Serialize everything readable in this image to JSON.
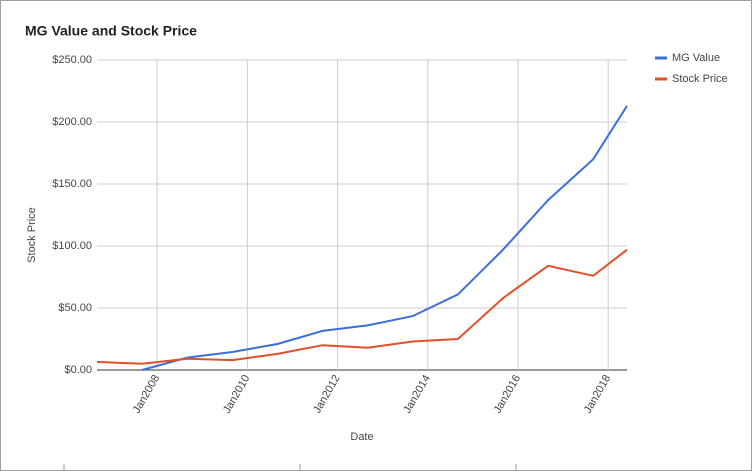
{
  "chart_data": {
    "type": "line",
    "title": "MG Value and Stock Price",
    "x_label": "Date",
    "y_label": "Stock Price",
    "x": [
      "2006-09",
      "2007-09",
      "2008-09",
      "2009-09",
      "2010-09",
      "2011-09",
      "2012-09",
      "2013-09",
      "2014-09",
      "2015-09",
      "2016-09",
      "2017-09",
      "2018-06"
    ],
    "xlim": [
      "2006-09",
      "2018-06"
    ],
    "xticks": [
      {
        "value": "2008-01",
        "label": "Jan2008"
      },
      {
        "value": "2010-01",
        "label": "Jan2010"
      },
      {
        "value": "2012-01",
        "label": "Jan2012"
      },
      {
        "value": "2014-01",
        "label": "Jan2014"
      },
      {
        "value": "2016-01",
        "label": "Jan2016"
      },
      {
        "value": "2018-01",
        "label": "Jan2018"
      }
    ],
    "ylim": [
      0,
      250
    ],
    "yticks": [
      {
        "value": 0,
        "label": "$0.00"
      },
      {
        "value": 50,
        "label": "$50.00"
      },
      {
        "value": 100,
        "label": "$100.00"
      },
      {
        "value": 150,
        "label": "$150.00"
      },
      {
        "value": 200,
        "label": "$200.00"
      },
      {
        "value": 250,
        "label": "$250.00"
      }
    ],
    "grid": true,
    "legend": "right",
    "series": [
      {
        "name": "MG Value",
        "color": "#3c6fd8",
        "values": [
          null,
          0,
          10,
          14.5,
          21,
          31.5,
          36,
          43.5,
          61,
          97,
          137,
          170,
          213
        ]
      },
      {
        "name": "Stock Price",
        "color": "#e0502b",
        "values": [
          6.5,
          5,
          9,
          8,
          13,
          20,
          18,
          23,
          25,
          58,
          84,
          76,
          97
        ]
      }
    ]
  }
}
